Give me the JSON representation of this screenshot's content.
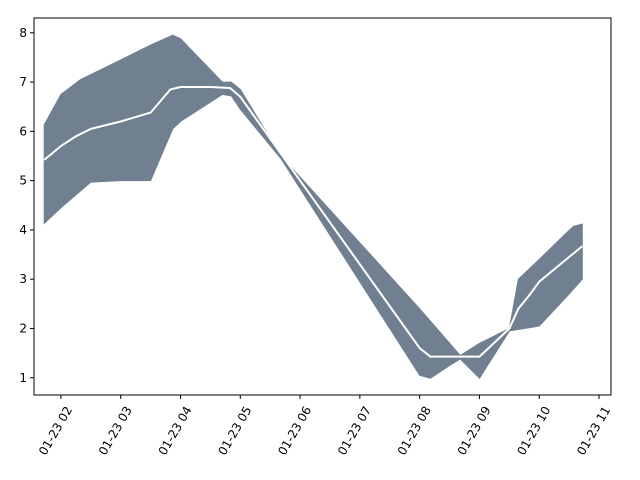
{
  "chart_data": {
    "type": "area",
    "title": "",
    "xlabel": "",
    "ylabel": "",
    "x_tick_labels": [
      "01-23 02",
      "01-23 03",
      "01-23 04",
      "01-23 05",
      "01-23 06",
      "01-23 07",
      "01-23 08",
      "01-23 09",
      "01-23 10",
      "01-23 11"
    ],
    "y_tick_labels": [
      "1",
      "2",
      "3",
      "4",
      "5",
      "6",
      "7",
      "8"
    ],
    "y_ticks": [
      1,
      2,
      3,
      4,
      5,
      6,
      7,
      8
    ],
    "ylim": [
      0.65,
      8.3
    ],
    "xlim_hours": [
      1.55,
      11.2
    ],
    "grid": false,
    "legend": "none",
    "colors": {
      "band": "#708090",
      "line": "#ffffff",
      "axis": "#000000"
    },
    "band_upper": {
      "x_hours": [
        1.72,
        2.0,
        2.33,
        3.0,
        3.5,
        3.87,
        4.0,
        4.7,
        4.85,
        5.0,
        5.68,
        8.0,
        8.68,
        9.0,
        9.5,
        9.65,
        10.0,
        10.42,
        10.57,
        10.72
      ],
      "values": [
        6.13,
        6.75,
        7.05,
        7.45,
        7.75,
        7.95,
        7.88,
        7.0,
        7.0,
        6.85,
        5.5,
        2.4,
        1.45,
        1.7,
        2.0,
        3.0,
        3.4,
        3.9,
        4.07,
        4.12
      ]
    },
    "band_lower": {
      "x_hours": [
        1.72,
        2.0,
        2.5,
        3.0,
        3.5,
        3.87,
        4.0,
        4.7,
        4.85,
        5.0,
        5.68,
        8.0,
        8.18,
        8.5,
        8.68,
        9.0,
        9.5,
        9.65,
        10.0,
        10.5,
        10.72
      ],
      "values": [
        4.13,
        4.45,
        4.97,
        5.0,
        5.0,
        6.05,
        6.2,
        6.75,
        6.72,
        6.45,
        5.45,
        1.05,
        0.99,
        1.25,
        1.38,
        0.99,
        1.95,
        1.98,
        2.05,
        2.7,
        3.0
      ]
    },
    "series": [
      {
        "x_hours": [
          1.72,
          2.0,
          2.25,
          2.5,
          3.0,
          3.5,
          3.83,
          4.0,
          4.5,
          4.83,
          5.0,
          8.0,
          8.18,
          9.0,
          9.5,
          9.65,
          9.85,
          10.0,
          10.5,
          10.72
        ],
        "values": [
          5.42,
          5.7,
          5.9,
          6.05,
          6.2,
          6.38,
          6.85,
          6.9,
          6.9,
          6.88,
          6.7,
          1.6,
          1.43,
          1.43,
          2.0,
          2.4,
          2.7,
          2.95,
          3.45,
          3.67
        ]
      }
    ]
  }
}
